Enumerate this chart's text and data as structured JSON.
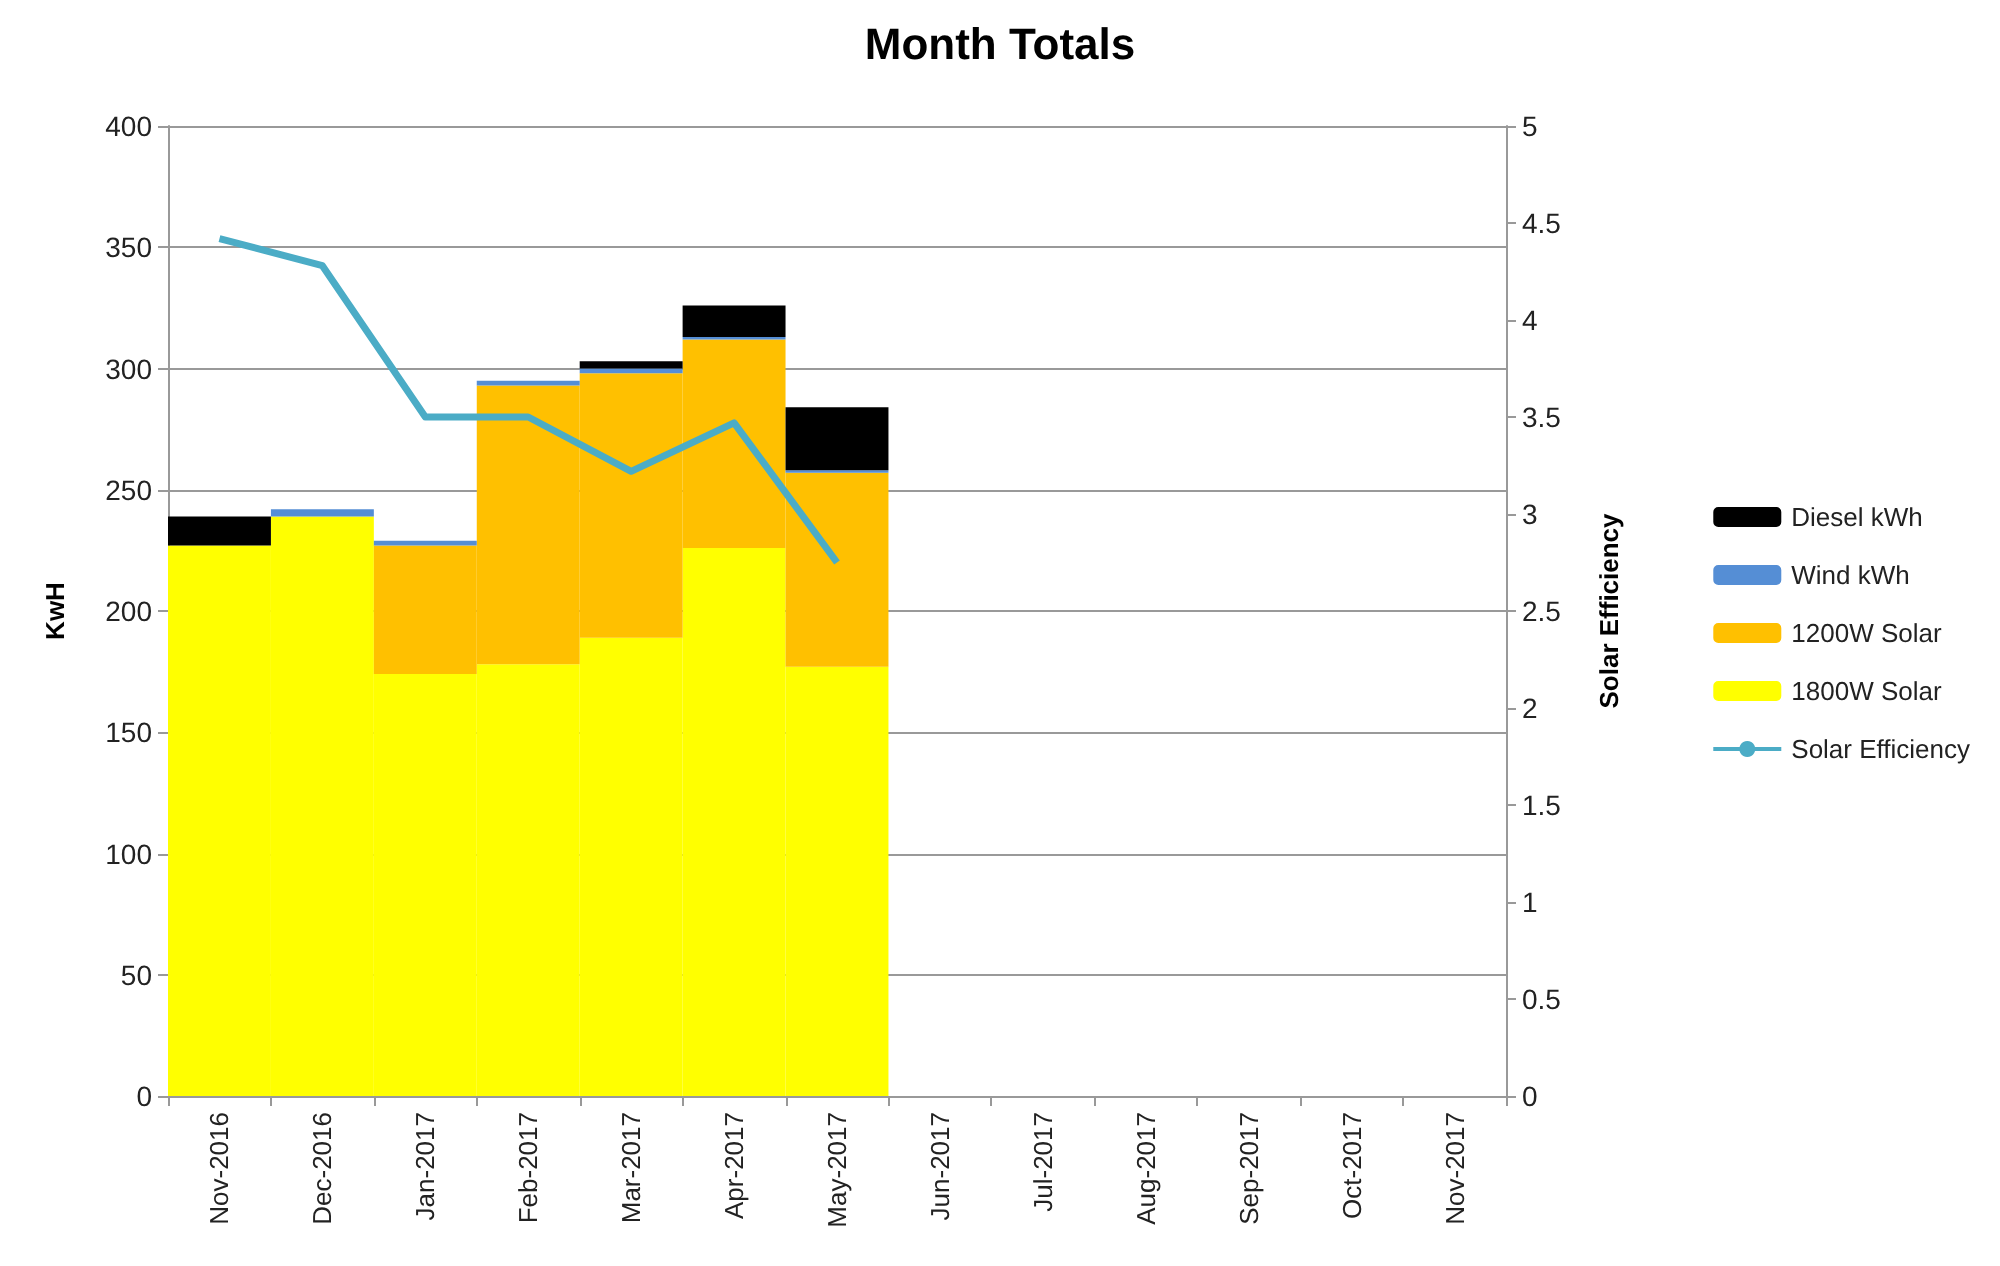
{
  "chart_data": {
    "type": "bar",
    "title": "Month Totals",
    "ylabel": "KwH",
    "y2label": "Solar Efficiency",
    "categories": [
      "Nov-2016",
      "Dec-2016",
      "Jan-2017",
      "Feb-2017",
      "Mar-2017",
      "Apr-2017",
      "May-2017",
      "Jun-2017",
      "Jul-2017",
      "Aug-2017",
      "Sep-2017",
      "Oct-2017",
      "Nov-2017"
    ],
    "stacked": true,
    "series": [
      {
        "name": "1800W Solar",
        "color": "#ffff00",
        "values": [
          227,
          239,
          174,
          178,
          189,
          226,
          177,
          null,
          null,
          null,
          null,
          null,
          null
        ]
      },
      {
        "name": "1200W Solar",
        "color": "#ffc000",
        "values": [
          0,
          0,
          53,
          115,
          109,
          86,
          80,
          null,
          null,
          null,
          null,
          null,
          null
        ]
      },
      {
        "name": "Wind kWh",
        "color": "#558ed5",
        "values": [
          0,
          3,
          2,
          2,
          2,
          1,
          1,
          null,
          null,
          null,
          null,
          null,
          null
        ]
      },
      {
        "name": "Diesel kWh",
        "color": "#000000",
        "values": [
          12,
          0,
          0,
          0,
          3,
          13,
          26,
          null,
          null,
          null,
          null,
          null,
          null
        ]
      },
      {
        "name": "Solar Efficiency",
        "type": "line",
        "axis": "y2",
        "color": "#4bacc6",
        "values": [
          4.42,
          4.28,
          3.5,
          3.5,
          3.22,
          3.47,
          2.75,
          null,
          null,
          null,
          null,
          null,
          null
        ]
      }
    ],
    "ylim": [
      0,
      400
    ],
    "yticks": [
      0,
      50,
      100,
      150,
      200,
      250,
      300,
      350,
      400
    ],
    "y2lim": [
      0,
      5
    ],
    "y2ticks": [
      0,
      0.5,
      1,
      1.5,
      2,
      2.5,
      3,
      3.5,
      4,
      4.5,
      5
    ],
    "grid": "y",
    "legend": "right",
    "marker": "none"
  }
}
